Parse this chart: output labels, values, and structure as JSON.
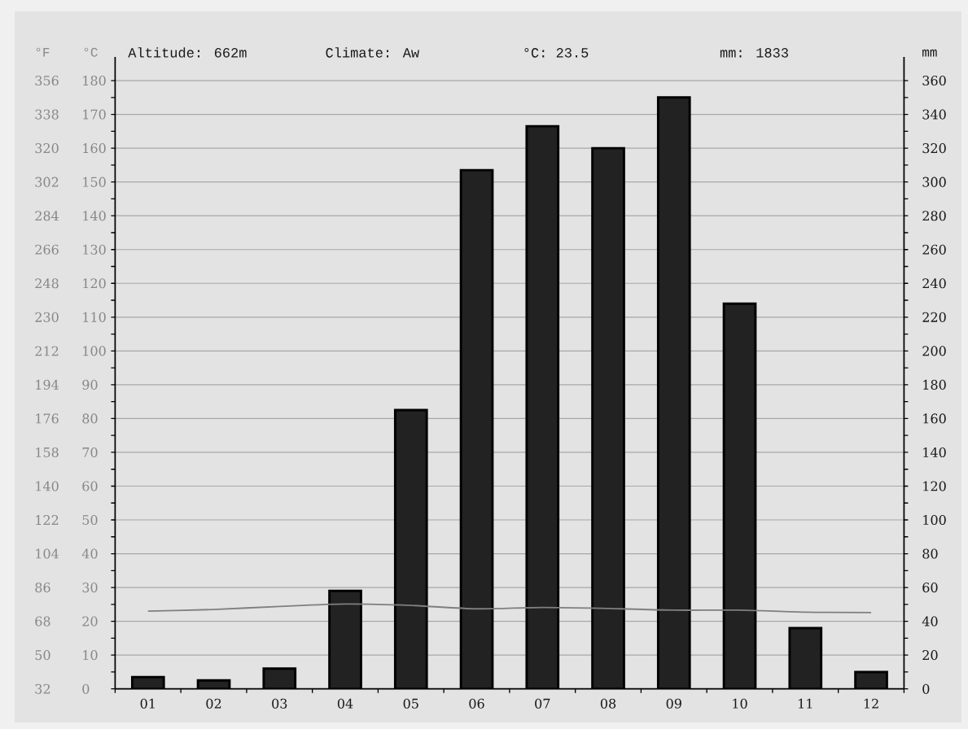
{
  "chart_data": {
    "type": "bar",
    "annotations": [
      "Altitude: 662m",
      "Climate: Aw",
      "°C: 23.5",
      "mm: 1833"
    ],
    "ylabel": "°C",
    "y2label": "mm",
    "y3label": "°F",
    "categories": [
      "01",
      "02",
      "03",
      "04",
      "05",
      "06",
      "07",
      "08",
      "09",
      "10",
      "11",
      "12"
    ],
    "series": [
      {
        "axis": "y2",
        "color": "#222222",
        "values": [
          7,
          5,
          12,
          58,
          165,
          307,
          333,
          320,
          350,
          228,
          36,
          10
        ]
      },
      {
        "type": "line",
        "axis": "y",
        "color": "#7f7f7f",
        "values": [
          23.0,
          23.5,
          24.4,
          25.1,
          24.7,
          23.7,
          24.1,
          23.8,
          23.3,
          23.3,
          22.7,
          22.6
        ]
      }
    ],
    "ylim": [
      0,
      187
    ],
    "yticks": [
      0,
      {
        "value": 5,
        "label": null
      },
      10,
      {
        "value": 15,
        "label": null
      },
      20,
      {
        "value": 25,
        "label": null
      },
      30,
      {
        "value": 35,
        "label": null
      },
      40,
      {
        "value": 45,
        "label": null
      },
      50,
      {
        "value": 55,
        "label": null
      },
      60,
      {
        "value": 65,
        "label": null
      },
      70,
      {
        "value": 75,
        "label": null
      },
      80,
      {
        "value": 85,
        "label": null
      },
      90,
      {
        "value": 95,
        "label": null
      },
      100,
      {
        "value": 105,
        "label": null
      },
      110,
      {
        "value": 115,
        "label": null
      },
      120,
      {
        "value": 125,
        "label": null
      },
      130,
      {
        "value": 135,
        "label": null
      },
      140,
      {
        "value": 145,
        "label": null
      },
      150,
      {
        "value": 155,
        "label": null
      },
      160,
      {
        "value": 165,
        "label": null
      },
      170,
      {
        "value": 175,
        "label": null
      },
      180
    ],
    "y2lim": [
      0,
      374
    ],
    "y2ticks": [
      0,
      {
        "value": 10,
        "label": null
      },
      20,
      {
        "value": 30,
        "label": null
      },
      40,
      {
        "value": 50,
        "label": null
      },
      60,
      {
        "value": 70,
        "label": null
      },
      80,
      {
        "value": 90,
        "label": null
      },
      100,
      {
        "value": 110,
        "label": null
      },
      120,
      {
        "value": 130,
        "label": null
      },
      140,
      {
        "value": 150,
        "label": null
      },
      160,
      {
        "value": 170,
        "label": null
      },
      180,
      {
        "value": 190,
        "label": null
      },
      200,
      {
        "value": 210,
        "label": null
      },
      220,
      {
        "value": 230,
        "label": null
      },
      240,
      {
        "value": 250,
        "label": null
      },
      260,
      {
        "value": 270,
        "label": null
      },
      280,
      {
        "value": 290,
        "label": null
      },
      300,
      {
        "value": 310,
        "label": null
      },
      320,
      {
        "value": 330,
        "label": null
      },
      340,
      {
        "value": 350,
        "label": null
      },
      360
    ],
    "y3lim": [
      32,
      368.6
    ],
    "y3ticks": [
      32,
      50,
      68,
      86,
      104,
      122,
      140,
      158,
      176,
      194,
      212,
      230,
      248,
      266,
      284,
      302,
      320,
      338,
      356
    ],
    "grid": "y"
  }
}
